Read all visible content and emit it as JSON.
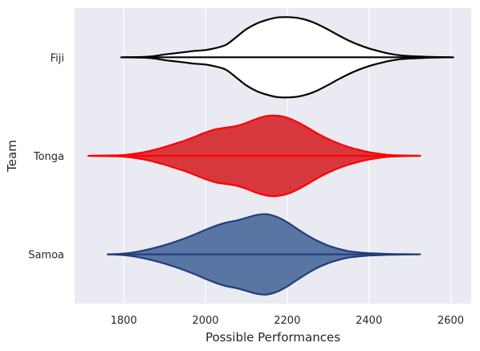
{
  "chart_data": {
    "type": "violin",
    "orientation": "horizontal",
    "title": "",
    "xlabel": "Possible Performances",
    "ylabel": "Team",
    "xlim": [
      1680,
      2650
    ],
    "xticks": [
      1800,
      2000,
      2200,
      2400,
      2600
    ],
    "grid": true,
    "background_color": "#eaeaf2",
    "categories": [
      "Fiji",
      "Tonga",
      "Samoa"
    ],
    "series": [
      {
        "name": "Fiji",
        "fill_color": "#ffffff",
        "line_color": "#000000",
        "min": 1800,
        "max": 2600,
        "density_profile": [
          [
            1800,
            0.0
          ],
          [
            1850,
            0.01
          ],
          [
            1875,
            0.03
          ],
          [
            1900,
            0.07
          ],
          [
            1925,
            0.1
          ],
          [
            1950,
            0.13
          ],
          [
            1975,
            0.16
          ],
          [
            2000,
            0.18
          ],
          [
            2025,
            0.23
          ],
          [
            2050,
            0.31
          ],
          [
            2075,
            0.5
          ],
          [
            2100,
            0.7
          ],
          [
            2125,
            0.84
          ],
          [
            2150,
            0.93
          ],
          [
            2175,
            0.99
          ],
          [
            2200,
            1.0
          ],
          [
            2225,
            0.98
          ],
          [
            2250,
            0.92
          ],
          [
            2275,
            0.82
          ],
          [
            2300,
            0.69
          ],
          [
            2325,
            0.55
          ],
          [
            2350,
            0.42
          ],
          [
            2375,
            0.31
          ],
          [
            2400,
            0.22
          ],
          [
            2425,
            0.15
          ],
          [
            2450,
            0.09
          ],
          [
            2475,
            0.05
          ],
          [
            2500,
            0.03
          ],
          [
            2525,
            0.02
          ],
          [
            2550,
            0.01
          ],
          [
            2600,
            0.0
          ]
        ]
      },
      {
        "name": "Tonga",
        "fill_color": "#d7383e",
        "line_color": "#ff0000",
        "min": 1720,
        "max": 2520,
        "density_profile": [
          [
            1720,
            0.0
          ],
          [
            1775,
            0.01
          ],
          [
            1800,
            0.02
          ],
          [
            1825,
            0.05
          ],
          [
            1850,
            0.09
          ],
          [
            1875,
            0.15
          ],
          [
            1900,
            0.22
          ],
          [
            1925,
            0.3
          ],
          [
            1950,
            0.38
          ],
          [
            1975,
            0.48
          ],
          [
            2000,
            0.58
          ],
          [
            2025,
            0.66
          ],
          [
            2050,
            0.7
          ],
          [
            2075,
            0.74
          ],
          [
            2100,
            0.82
          ],
          [
            2125,
            0.92
          ],
          [
            2150,
            0.99
          ],
          [
            2175,
            1.0
          ],
          [
            2200,
            0.95
          ],
          [
            2225,
            0.84
          ],
          [
            2250,
            0.7
          ],
          [
            2275,
            0.55
          ],
          [
            2300,
            0.42
          ],
          [
            2325,
            0.31
          ],
          [
            2350,
            0.22
          ],
          [
            2375,
            0.15
          ],
          [
            2400,
            0.09
          ],
          [
            2425,
            0.05
          ],
          [
            2450,
            0.02
          ],
          [
            2475,
            0.01
          ],
          [
            2520,
            0.0
          ]
        ]
      },
      {
        "name": "Samoa",
        "fill_color": "#5975a4",
        "line_color": "#233d7b",
        "min": 1765,
        "max": 2520,
        "density_profile": [
          [
            1765,
            0.0
          ],
          [
            1800,
            0.02
          ],
          [
            1825,
            0.05
          ],
          [
            1850,
            0.1
          ],
          [
            1875,
            0.16
          ],
          [
            1900,
            0.23
          ],
          [
            1925,
            0.31
          ],
          [
            1950,
            0.4
          ],
          [
            1975,
            0.5
          ],
          [
            2000,
            0.61
          ],
          [
            2025,
            0.71
          ],
          [
            2050,
            0.79
          ],
          [
            2075,
            0.84
          ],
          [
            2100,
            0.91
          ],
          [
            2125,
            0.98
          ],
          [
            2150,
            1.0
          ],
          [
            2175,
            0.93
          ],
          [
            2200,
            0.8
          ],
          [
            2225,
            0.63
          ],
          [
            2250,
            0.47
          ],
          [
            2275,
            0.33
          ],
          [
            2300,
            0.22
          ],
          [
            2325,
            0.14
          ],
          [
            2350,
            0.08
          ],
          [
            2375,
            0.05
          ],
          [
            2400,
            0.03
          ],
          [
            2425,
            0.02
          ],
          [
            2450,
            0.01
          ],
          [
            2480,
            0.005
          ],
          [
            2520,
            0.0
          ]
        ]
      }
    ]
  }
}
